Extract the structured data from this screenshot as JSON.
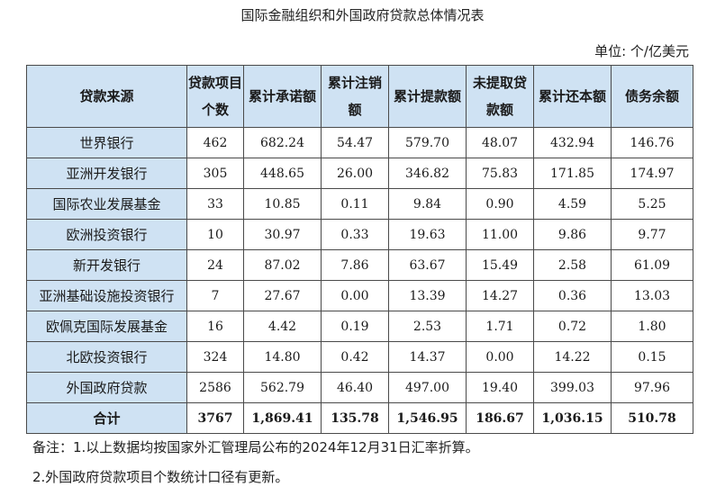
{
  "title": "国际金融组织和外国政府贷款总体情况表",
  "unit": "单位: 个/亿美元",
  "headers": [
    "贷款来源",
    "贷款项目个数",
    "累计承诺额",
    "累计注销额",
    "累计提款额",
    "未提取贷款额",
    "累计还本额",
    "债务余额"
  ],
  "rows": [
    [
      "世界银行",
      "462",
      "682.24",
      "54.47",
      "579.70",
      "48.07",
      "432.94",
      "146.76"
    ],
    [
      "亚洲开发银行",
      "305",
      "448.65",
      "26.00",
      "346.82",
      "75.83",
      "171.85",
      "174.97"
    ],
    [
      "国际农业发展基金",
      "33",
      "10.85",
      "0.11",
      "9.84",
      "0.90",
      "4.59",
      "5.25"
    ],
    [
      "欧洲投资银行",
      "10",
      "30.97",
      "0.33",
      "19.63",
      "11.00",
      "9.86",
      "9.77"
    ],
    [
      "新开发银行",
      "24",
      "87.02",
      "7.86",
      "63.67",
      "15.49",
      "2.58",
      "61.09"
    ],
    [
      "亚洲基础设施投资银行",
      "7",
      "27.67",
      "0.00",
      "13.39",
      "14.27",
      "0.36",
      "13.03"
    ],
    [
      "欧佩克国际发展基金",
      "16",
      "4.42",
      "0.19",
      "2.53",
      "1.71",
      "0.72",
      "1.80"
    ],
    [
      "北欧投资银行",
      "324",
      "14.80",
      "0.42",
      "14.37",
      "0.00",
      "14.22",
      "0.15"
    ],
    [
      "外国政府贷款",
      "2586",
      "562.79",
      "46.40",
      "497.00",
      "19.40",
      "399.03",
      "97.96"
    ]
  ],
  "total": [
    "合计",
    "3767",
    "1,869.41",
    "135.78",
    "1,546.95",
    "186.67",
    "1,036.15",
    "510.78"
  ],
  "notes": [
    "备注：1.以上数据均按国家外汇管理局公布的2024年12月31日汇率折算。",
    "2.外国政府贷款项目个数统计口径有更新。"
  ],
  "colors": {
    "header_bg": "#cfe2f3",
    "border": "#4a4a4a"
  }
}
